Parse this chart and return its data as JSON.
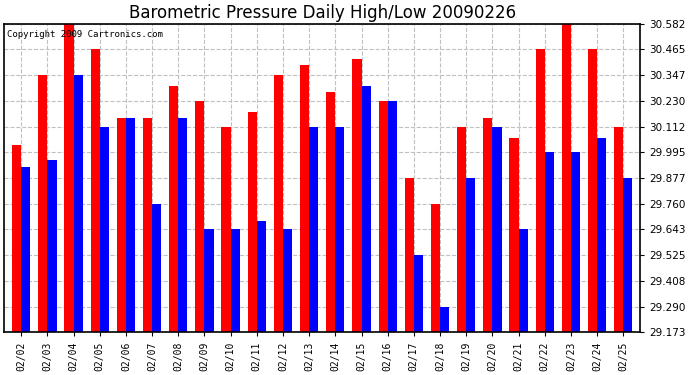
{
  "title": "Barometric Pressure Daily High/Low 20090226",
  "copyright": "Copyright 2009 Cartronics.com",
  "dates": [
    "02/02",
    "02/03",
    "02/04",
    "02/05",
    "02/06",
    "02/07",
    "02/08",
    "02/09",
    "02/10",
    "02/11",
    "02/12",
    "02/13",
    "02/14",
    "02/15",
    "02/16",
    "02/17",
    "02/18",
    "02/19",
    "02/20",
    "02/21",
    "02/22",
    "02/23",
    "02/24",
    "02/25"
  ],
  "highs": [
    30.03,
    30.347,
    30.582,
    30.465,
    30.15,
    30.15,
    30.3,
    30.23,
    30.112,
    30.18,
    30.347,
    30.395,
    30.27,
    30.42,
    30.23,
    29.877,
    29.76,
    30.112,
    30.15,
    30.06,
    30.465,
    30.582,
    30.465,
    30.112
  ],
  "lows": [
    29.93,
    29.96,
    30.347,
    30.112,
    30.15,
    29.76,
    30.15,
    29.643,
    29.643,
    29.68,
    29.643,
    30.112,
    30.112,
    30.3,
    30.23,
    29.525,
    29.29,
    29.877,
    30.112,
    29.643,
    29.995,
    29.995,
    30.06,
    29.877
  ],
  "ymin": 29.173,
  "ymax": 30.582,
  "yticks": [
    29.173,
    29.29,
    29.408,
    29.525,
    29.643,
    29.76,
    29.877,
    29.995,
    30.112,
    30.23,
    30.347,
    30.465,
    30.582
  ],
  "high_color": "#ff0000",
  "low_color": "#0000ff",
  "bg_color": "#ffffff",
  "grid_color": "#c0c0c0",
  "title_fontsize": 12,
  "bar_width": 0.35
}
